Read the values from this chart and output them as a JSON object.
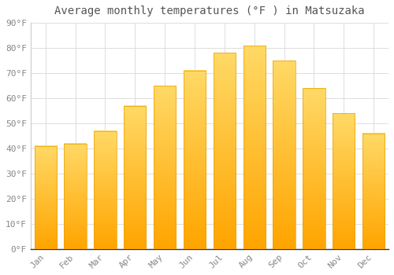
{
  "title": "Average monthly temperatures (°F ) in Matsuzaka",
  "months": [
    "Jan",
    "Feb",
    "Mar",
    "Apr",
    "May",
    "Jun",
    "Jul",
    "Aug",
    "Sep",
    "Oct",
    "Nov",
    "Dec"
  ],
  "values": [
    41,
    42,
    47,
    57,
    65,
    71,
    78,
    81,
    75,
    64,
    54,
    46
  ],
  "bar_color_top": "#FFD966",
  "bar_color_bottom": "#FFA500",
  "background_color": "#FFFFFF",
  "grid_color": "#DDDDDD",
  "ylim": [
    0,
    90
  ],
  "yticks": [
    0,
    10,
    20,
    30,
    40,
    50,
    60,
    70,
    80,
    90
  ],
  "title_fontsize": 10,
  "tick_fontsize": 8,
  "figsize": [
    5.0,
    3.5
  ],
  "dpi": 100,
  "bar_width": 0.75
}
